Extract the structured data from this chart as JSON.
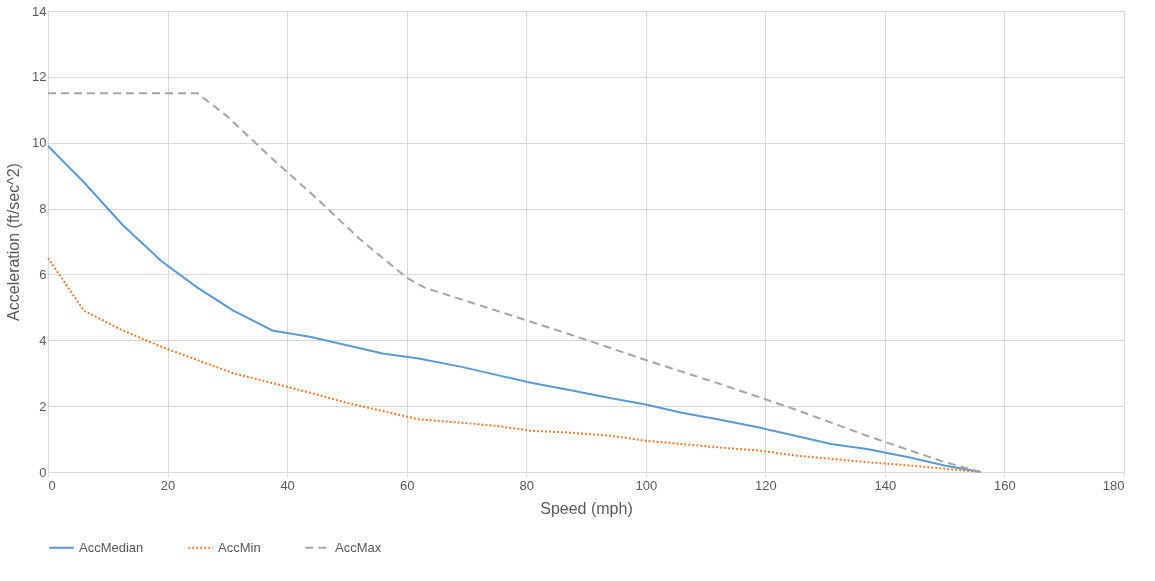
{
  "chart_data": {
    "type": "line",
    "xlabel": "Speed (mph)",
    "ylabel": "Acceleration (ft/sec^2)",
    "xlim": [
      0,
      180
    ],
    "xticks": [
      0,
      20,
      40,
      60,
      80,
      100,
      120,
      140,
      160,
      180
    ],
    "ylim": [
      0,
      14
    ],
    "yticks": [
      0,
      2,
      4,
      6,
      8,
      10,
      12,
      14
    ],
    "grid": true,
    "legend": "bottom",
    "marker": "none",
    "series": [
      {
        "name": "AccMedian",
        "color": "#5b9bd5",
        "line_style": "solid",
        "x": [
          0,
          6,
          12.5,
          19,
          25,
          31,
          37.5,
          44,
          50,
          56,
          62,
          69,
          75,
          81,
          87,
          94,
          100,
          106,
          112,
          119,
          125,
          131,
          137,
          144,
          150,
          156
        ],
        "values": [
          9.9,
          8.8,
          7.5,
          6.4,
          5.6,
          4.9,
          4.3,
          4.1,
          3.85,
          3.6,
          3.45,
          3.2,
          2.95,
          2.7,
          2.5,
          2.25,
          2.05,
          1.8,
          1.6,
          1.35,
          1.1,
          0.85,
          0.7,
          0.45,
          0.2,
          0
        ]
      },
      {
        "name": "AccMin",
        "color": "#ed7d31",
        "line_style": "dotted",
        "x": [
          0,
          6,
          12.5,
          19,
          25,
          31,
          37.5,
          44,
          50,
          56,
          62,
          69,
          75,
          81,
          87,
          94,
          100,
          106,
          112,
          119,
          125,
          131,
          137,
          144,
          150,
          156
        ],
        "values": [
          6.5,
          4.9,
          4.3,
          3.8,
          3.4,
          3.0,
          2.7,
          2.4,
          2.1,
          1.85,
          1.6,
          1.5,
          1.4,
          1.25,
          1.2,
          1.1,
          0.95,
          0.85,
          0.75,
          0.65,
          0.5,
          0.4,
          0.3,
          0.2,
          0.1,
          0
        ]
      },
      {
        "name": "AccMax",
        "color": "#a5a5a5",
        "line_style": "dashed",
        "x": [
          0,
          25,
          30,
          37,
          45,
          52,
          60,
          63,
          75,
          87,
          100,
          112,
          125,
          137,
          150,
          156
        ],
        "values": [
          11.5,
          11.5,
          10.8,
          9.6,
          8.3,
          7.1,
          5.9,
          5.6,
          4.9,
          4.2,
          3.4,
          2.7,
          1.9,
          1.1,
          0.3,
          0
        ]
      }
    ]
  }
}
